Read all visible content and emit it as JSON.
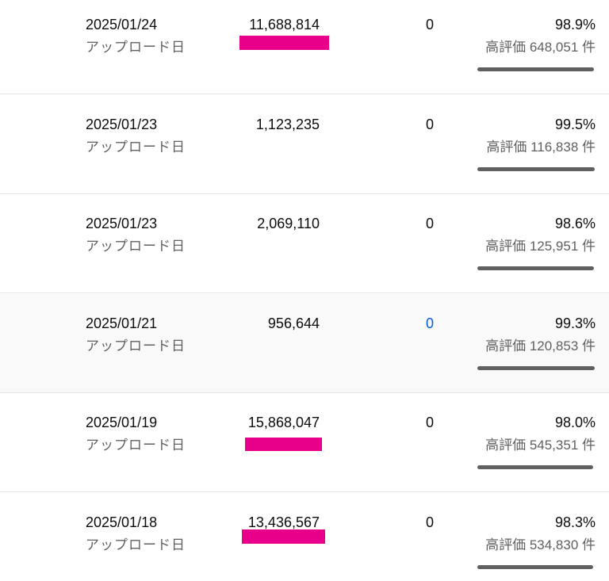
{
  "table": {
    "rows": [
      {
        "date": "2025/01/24",
        "date_label": "アップロード日",
        "views": "11,688,814",
        "comments": "0",
        "like_ratio": {
          "value": 98.9,
          "label": "98.9%"
        },
        "likes": "高評価 648,051 件"
      },
      {
        "date": "2025/01/23",
        "date_label": "アップロード日",
        "views": "1,123,235",
        "comments": "0",
        "like_ratio": {
          "value": 99.5,
          "label": "99.5%"
        },
        "likes": "高評価 116,838 件"
      },
      {
        "date": "2025/01/23",
        "date_label": "アップロード日",
        "views": "2,069,110",
        "comments": "0",
        "like_ratio": {
          "value": 98.6,
          "label": "98.6%"
        },
        "likes": "高評価 125,951 件"
      },
      {
        "date": "2025/01/21",
        "date_label": "アップロード日",
        "views": "956,644",
        "comments": "0",
        "like_ratio": {
          "value": 99.3,
          "label": "99.3%"
        },
        "likes": "高評価 120,853 件"
      },
      {
        "date": "2025/01/19",
        "date_label": "アップロード日",
        "views": "15,868,047",
        "comments": "0",
        "like_ratio": {
          "value": 98.0,
          "label": "98.0%"
        },
        "likes": "高評価 545,351 件"
      },
      {
        "date": "2025/01/18",
        "date_label": "アップロード日",
        "views": "13,436,567",
        "comments": "0",
        "like_ratio": {
          "value": 98.3,
          "label": "98.3%"
        },
        "likes": "高評価 534,830 件"
      }
    ]
  }
}
